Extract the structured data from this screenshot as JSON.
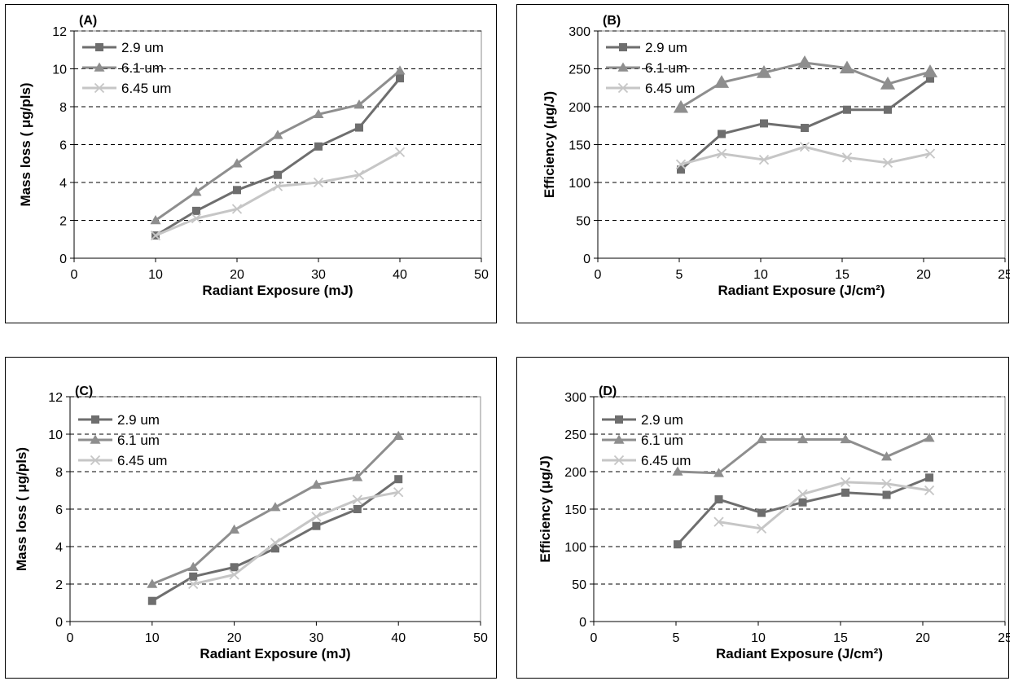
{
  "colors": {
    "s29": "#6e6e6e",
    "s61": "#8e8e8e",
    "s645": "#c6c6c6",
    "grid": "#000000",
    "plot_bg": "#ffffff"
  },
  "chart_data": [
    {
      "id": "A",
      "type": "line",
      "title": "(A)",
      "xlabel": "Radiant Exposure (mJ)",
      "ylabel": "Mass loss ( μg/pls)",
      "xlim": [
        0,
        50
      ],
      "ylim": [
        0,
        12
      ],
      "xticks": [
        0,
        10,
        20,
        30,
        40,
        50
      ],
      "yticks": [
        0,
        2,
        4,
        6,
        8,
        10,
        12
      ],
      "grid": "horizontal dashed",
      "legend_position": "top-left",
      "series": [
        {
          "name": "2.9 um",
          "marker": "square",
          "x": [
            10,
            15,
            20,
            25,
            30,
            35,
            40
          ],
          "y": [
            1.2,
            2.5,
            3.6,
            4.4,
            5.9,
            6.9,
            9.5
          ]
        },
        {
          "name": "6.1 um",
          "marker": "triangle",
          "x": [
            10,
            15,
            20,
            25,
            30,
            35,
            40
          ],
          "y": [
            2.0,
            3.5,
            5.0,
            6.5,
            7.6,
            8.1,
            9.9
          ]
        },
        {
          "name": "6.45 um",
          "marker": "cross",
          "x": [
            10,
            15,
            20,
            25,
            30,
            35,
            40
          ],
          "y": [
            1.2,
            2.1,
            2.6,
            3.8,
            4.0,
            4.4,
            5.6
          ]
        }
      ]
    },
    {
      "id": "B",
      "type": "line",
      "title": "(B)",
      "xlabel": "Radiant Exposure (J/cm²)",
      "ylabel": "Efficiency (μg/J)",
      "xlim": [
        0,
        25
      ],
      "ylim": [
        0,
        300
      ],
      "xticks": [
        0,
        5,
        10,
        15,
        20,
        25
      ],
      "yticks": [
        0,
        50,
        100,
        150,
        200,
        250,
        300
      ],
      "grid": "horizontal dashed",
      "legend_position": "top-left",
      "series": [
        {
          "name": "2.9 um",
          "marker": "square",
          "x": [
            5.1,
            7.6,
            10.2,
            12.7,
            15.3,
            17.8,
            20.4
          ],
          "y": [
            117,
            164,
            178,
            172,
            196,
            196,
            237
          ]
        },
        {
          "name": "6.1 um",
          "marker": "triangle",
          "x": [
            5.1,
            7.6,
            10.2,
            12.7,
            15.3,
            17.8,
            20.4
          ],
          "y": [
            199,
            232,
            245,
            258,
            251,
            230,
            246
          ]
        },
        {
          "name": "6.45 um",
          "marker": "cross",
          "x": [
            5.1,
            7.6,
            10.2,
            12.7,
            15.3,
            17.8,
            20.4
          ],
          "y": [
            124,
            138,
            130,
            147,
            133,
            126,
            138
          ]
        }
      ]
    },
    {
      "id": "C",
      "type": "line",
      "title": "(C)",
      "xlabel": "Radiant Exposure (mJ)",
      "ylabel": "Mass loss ( μg/pls)",
      "xlim": [
        0,
        50
      ],
      "ylim": [
        0,
        12
      ],
      "xticks": [
        0,
        10,
        20,
        30,
        40,
        50
      ],
      "yticks": [
        0,
        2,
        4,
        6,
        8,
        10,
        12
      ],
      "grid": "horizontal dashed",
      "legend_position": "top-left",
      "series": [
        {
          "name": "2.9 um",
          "marker": "square",
          "x": [
            10,
            15,
            20,
            25,
            30,
            35,
            40
          ],
          "y": [
            1.1,
            2.4,
            2.9,
            3.9,
            5.1,
            6.0,
            7.6
          ]
        },
        {
          "name": "6.1 um",
          "marker": "triangle",
          "x": [
            10,
            15,
            20,
            25,
            30,
            35,
            40
          ],
          "y": [
            2.0,
            2.9,
            4.9,
            6.1,
            7.3,
            7.7,
            9.9
          ]
        },
        {
          "name": "6.45 um",
          "marker": "cross",
          "x": [
            15,
            20,
            25,
            30,
            35,
            40
          ],
          "y": [
            2.0,
            2.5,
            4.2,
            5.6,
            6.5,
            6.9
          ]
        }
      ]
    },
    {
      "id": "D",
      "type": "line",
      "title": "(D)",
      "xlabel": "Radiant Exposure (J/cm²)",
      "ylabel": "Efficiency (μg/J)",
      "xlim": [
        0,
        25
      ],
      "ylim": [
        0,
        300
      ],
      "xticks": [
        0,
        5,
        10,
        15,
        20,
        25
      ],
      "yticks": [
        0,
        50,
        100,
        150,
        200,
        250,
        300
      ],
      "grid": "horizontal dashed",
      "legend_position": "top-left",
      "series": [
        {
          "name": "2.9 um",
          "marker": "square",
          "x": [
            5.1,
            7.6,
            10.2,
            12.7,
            15.3,
            17.8,
            20.4
          ],
          "y": [
            103,
            163,
            145,
            159,
            172,
            169,
            192
          ]
        },
        {
          "name": "6.1 um",
          "marker": "triangle",
          "x": [
            5.1,
            7.6,
            10.2,
            12.7,
            15.3,
            17.8,
            20.4
          ],
          "y": [
            200,
            198,
            243,
            243,
            243,
            220,
            245
          ]
        },
        {
          "name": "6.45 um",
          "marker": "cross",
          "x": [
            7.6,
            10.2,
            12.7,
            15.3,
            17.8,
            20.4
          ],
          "y": [
            133,
            124,
            170,
            186,
            184,
            175
          ]
        }
      ]
    }
  ]
}
